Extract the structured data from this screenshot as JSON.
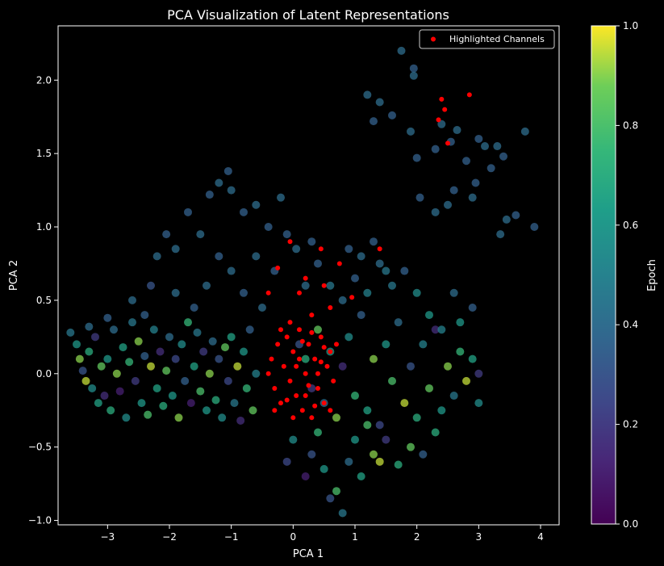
{
  "chart_data": {
    "type": "scatter",
    "title": "PCA Visualization of Latent Representations",
    "xlabel": "PCA 1",
    "ylabel": "PCA 2",
    "xlim": [
      -3.8,
      4.3
    ],
    "ylim": [
      -1.03,
      2.37
    ],
    "xticks": [
      -3,
      -2,
      -1,
      0,
      1,
      2,
      3,
      4
    ],
    "yticks": [
      -1.0,
      -0.5,
      0.0,
      0.5,
      1.0,
      1.5,
      2.0
    ],
    "xtick_labels": [
      "−3",
      "−2",
      "−1",
      "0",
      "1",
      "2",
      "3",
      "4"
    ],
    "ytick_labels": [
      "−1.0",
      "−0.5",
      "0.0",
      "0.5",
      "1.0",
      "1.5",
      "2.0"
    ],
    "grid": false,
    "background": "#000000",
    "colormap": "viridis",
    "colorbar": {
      "label": "Epoch",
      "range": [
        0.0,
        1.0
      ],
      "ticks": [
        0.0,
        0.2,
        0.4,
        0.6,
        0.8,
        1.0
      ],
      "tick_labels": [
        "0.0",
        "0.2",
        "0.4",
        "0.6",
        "0.8",
        "1.0"
      ]
    },
    "legend": {
      "placement": "upper right",
      "entries": [
        {
          "label": "Highlighted Channels",
          "color": "#ff0000"
        }
      ]
    },
    "series": [
      {
        "points": [
          [
            -3.6,
            0.28,
            0.45
          ],
          [
            -3.5,
            0.2,
            0.6
          ],
          [
            -3.45,
            0.1,
            0.9
          ],
          [
            -3.4,
            0.02,
            0.3
          ],
          [
            -3.35,
            -0.05,
            0.95
          ],
          [
            -3.3,
            0.15,
            0.7
          ],
          [
            -3.25,
            -0.1,
            0.55
          ],
          [
            -3.2,
            0.25,
            0.2
          ],
          [
            -3.15,
            -0.2,
            0.65
          ],
          [
            -3.1,
            0.05,
            0.85
          ],
          [
            -3.05,
            -0.15,
            0.15
          ],
          [
            -3.0,
            0.1,
            0.6
          ],
          [
            -2.95,
            -0.25,
            0.7
          ],
          [
            -2.9,
            0.3,
            0.4
          ],
          [
            -2.85,
            0.0,
            0.9
          ],
          [
            -2.8,
            -0.12,
            0.1
          ],
          [
            -2.75,
            0.18,
            0.65
          ],
          [
            -2.7,
            -0.3,
            0.55
          ],
          [
            -2.65,
            0.08,
            0.75
          ],
          [
            -2.6,
            0.35,
            0.45
          ],
          [
            -2.55,
            -0.05,
            0.2
          ],
          [
            -2.5,
            0.22,
            0.9
          ],
          [
            -2.45,
            -0.2,
            0.6
          ],
          [
            -2.4,
            0.12,
            0.35
          ],
          [
            -2.35,
            -0.28,
            0.8
          ],
          [
            -2.3,
            0.05,
            0.95
          ],
          [
            -2.25,
            0.3,
            0.5
          ],
          [
            -2.2,
            -0.1,
            0.65
          ],
          [
            -2.15,
            0.15,
            0.15
          ],
          [
            -2.1,
            -0.22,
            0.7
          ],
          [
            -2.05,
            0.02,
            0.85
          ],
          [
            -2.0,
            0.25,
            0.4
          ],
          [
            -1.95,
            -0.15,
            0.6
          ],
          [
            -1.9,
            0.1,
            0.25
          ],
          [
            -1.85,
            -0.3,
            0.9
          ],
          [
            -1.8,
            0.2,
            0.55
          ],
          [
            -1.75,
            -0.05,
            0.35
          ],
          [
            -1.7,
            0.35,
            0.75
          ],
          [
            -1.65,
            -0.2,
            0.1
          ],
          [
            -1.6,
            0.05,
            0.65
          ],
          [
            -1.55,
            0.28,
            0.45
          ],
          [
            -1.5,
            -0.12,
            0.8
          ],
          [
            -1.45,
            0.15,
            0.2
          ],
          [
            -1.4,
            -0.25,
            0.6
          ],
          [
            -1.35,
            0.0,
            0.9
          ],
          [
            -1.3,
            0.22,
            0.4
          ],
          [
            -1.25,
            -0.18,
            0.7
          ],
          [
            -1.2,
            0.1,
            0.3
          ],
          [
            -1.15,
            -0.3,
            0.55
          ],
          [
            -1.1,
            0.18,
            0.85
          ],
          [
            -1.05,
            -0.05,
            0.25
          ],
          [
            -1.0,
            0.25,
            0.65
          ],
          [
            -0.95,
            -0.2,
            0.45
          ],
          [
            -0.9,
            0.05,
            0.95
          ],
          [
            -0.85,
            -0.32,
            0.15
          ],
          [
            -0.8,
            0.15,
            0.6
          ],
          [
            -0.75,
            -0.1,
            0.75
          ],
          [
            -0.7,
            0.3,
            0.35
          ],
          [
            -0.65,
            -0.25,
            0.85
          ],
          [
            -0.6,
            0.0,
            0.5
          ],
          [
            -3.3,
            0.32,
            0.4
          ],
          [
            -3.0,
            0.38,
            0.35
          ],
          [
            -2.6,
            0.5,
            0.4
          ],
          [
            -2.3,
            0.6,
            0.3
          ],
          [
            -2.2,
            0.8,
            0.4
          ],
          [
            -2.05,
            0.95,
            0.35
          ],
          [
            -1.9,
            0.85,
            0.4
          ],
          [
            -1.7,
            1.1,
            0.35
          ],
          [
            -1.5,
            0.95,
            0.4
          ],
          [
            -1.35,
            1.22,
            0.35
          ],
          [
            -1.2,
            1.3,
            0.4
          ],
          [
            -1.05,
            1.38,
            0.35
          ],
          [
            -1.0,
            1.25,
            0.4
          ],
          [
            -0.8,
            1.1,
            0.35
          ],
          [
            -0.6,
            1.15,
            0.4
          ],
          [
            -0.4,
            1.0,
            0.35
          ],
          [
            -0.2,
            1.2,
            0.4
          ],
          [
            -0.1,
            0.95,
            0.35
          ],
          [
            0.05,
            0.85,
            0.4
          ],
          [
            0.3,
            0.9,
            0.35
          ],
          [
            -1.4,
            0.6,
            0.4
          ],
          [
            -1.2,
            0.8,
            0.35
          ],
          [
            -1.0,
            0.7,
            0.4
          ],
          [
            -0.8,
            0.55,
            0.35
          ],
          [
            -0.6,
            0.8,
            0.4
          ],
          [
            -0.3,
            0.7,
            0.35
          ],
          [
            -0.5,
            0.45,
            0.4
          ],
          [
            -1.6,
            0.45,
            0.35
          ],
          [
            -1.9,
            0.55,
            0.4
          ],
          [
            -2.4,
            0.4,
            0.35
          ],
          [
            1.2,
            1.9,
            0.4
          ],
          [
            1.3,
            1.72,
            0.35
          ],
          [
            1.4,
            1.85,
            0.4
          ],
          [
            1.6,
            1.76,
            0.35
          ],
          [
            1.75,
            2.2,
            0.4
          ],
          [
            1.95,
            2.08,
            0.35
          ],
          [
            1.95,
            2.03,
            0.4
          ],
          [
            2.0,
            1.47,
            0.35
          ],
          [
            1.9,
            1.65,
            0.4
          ],
          [
            2.3,
            1.53,
            0.35
          ],
          [
            2.4,
            1.7,
            0.4
          ],
          [
            2.55,
            1.58,
            0.35
          ],
          [
            2.65,
            1.66,
            0.4
          ],
          [
            2.6,
            1.25,
            0.35
          ],
          [
            2.5,
            1.15,
            0.4
          ],
          [
            2.8,
            1.45,
            0.35
          ],
          [
            2.9,
            1.2,
            0.4
          ],
          [
            3.0,
            1.6,
            0.35
          ],
          [
            3.1,
            1.55,
            0.4
          ],
          [
            3.2,
            1.4,
            0.35
          ],
          [
            3.3,
            1.55,
            0.4
          ],
          [
            3.4,
            1.48,
            0.35
          ],
          [
            3.45,
            1.05,
            0.4
          ],
          [
            3.6,
            1.08,
            0.35
          ],
          [
            3.75,
            1.65,
            0.4
          ],
          [
            3.9,
            1.0,
            0.35
          ],
          [
            3.35,
            0.95,
            0.4
          ],
          [
            2.95,
            1.3,
            0.35
          ],
          [
            2.3,
            1.1,
            0.4
          ],
          [
            2.05,
            1.2,
            0.35
          ],
          [
            0.1,
            0.2,
            0.3
          ],
          [
            0.2,
            0.1,
            0.7
          ],
          [
            0.3,
            -0.1,
            0.2
          ],
          [
            0.4,
            0.3,
            0.85
          ],
          [
            0.5,
            -0.2,
            0.4
          ],
          [
            0.6,
            0.15,
            0.6
          ],
          [
            0.7,
            -0.3,
            0.9
          ],
          [
            0.8,
            0.05,
            0.15
          ],
          [
            0.9,
            0.25,
            0.55
          ],
          [
            1.0,
            -0.15,
            0.75
          ],
          [
            1.1,
            0.4,
            0.35
          ],
          [
            1.2,
            -0.25,
            0.65
          ],
          [
            1.3,
            0.1,
            0.9
          ],
          [
            1.4,
            -0.35,
            0.25
          ],
          [
            1.5,
            0.2,
            0.6
          ],
          [
            1.6,
            -0.05,
            0.8
          ],
          [
            1.7,
            0.35,
            0.4
          ],
          [
            1.8,
            -0.2,
            0.95
          ],
          [
            1.9,
            0.05,
            0.3
          ],
          [
            2.0,
            -0.3,
            0.7
          ],
          [
            2.1,
            0.2,
            0.5
          ],
          [
            2.2,
            -0.1,
            0.85
          ],
          [
            2.3,
            0.3,
            0.15
          ],
          [
            2.4,
            -0.25,
            0.6
          ],
          [
            2.5,
            0.05,
            0.9
          ],
          [
            2.6,
            -0.15,
            0.45
          ],
          [
            2.7,
            0.15,
            0.75
          ],
          [
            2.8,
            -0.05,
            0.95
          ],
          [
            2.9,
            0.1,
            0.65
          ],
          [
            3.0,
            -0.2,
            0.55
          ],
          [
            0.3,
            -0.55,
            0.3
          ],
          [
            0.5,
            -0.65,
            0.6
          ],
          [
            0.7,
            -0.8,
            0.8
          ],
          [
            0.9,
            -0.6,
            0.4
          ],
          [
            1.1,
            -0.7,
            0.65
          ],
          [
            1.3,
            -0.55,
            0.9
          ],
          [
            1.5,
            -0.45,
            0.2
          ],
          [
            1.7,
            -0.62,
            0.7
          ],
          [
            1.9,
            -0.5,
            0.85
          ],
          [
            2.1,
            -0.55,
            0.35
          ],
          [
            0.6,
            -0.85,
            0.3
          ],
          [
            0.8,
            -0.95,
            0.45
          ],
          [
            0.2,
            -0.7,
            0.1
          ],
          [
            -0.1,
            -0.6,
            0.25
          ],
          [
            0.0,
            -0.45,
            0.55
          ],
          [
            0.4,
            -0.4,
            0.75
          ],
          [
            1.0,
            -0.45,
            0.6
          ],
          [
            1.2,
            -0.35,
            0.8
          ],
          [
            1.4,
            -0.6,
            0.95
          ],
          [
            2.3,
            -0.4,
            0.7
          ],
          [
            0.8,
            0.5,
            0.4
          ],
          [
            1.0,
            0.65,
            0.35
          ],
          [
            1.2,
            0.55,
            0.5
          ],
          [
            1.4,
            0.75,
            0.4
          ],
          [
            1.6,
            0.6,
            0.45
          ],
          [
            1.8,
            0.7,
            0.35
          ],
          [
            2.0,
            0.55,
            0.55
          ],
          [
            2.2,
            0.4,
            0.6
          ],
          [
            2.4,
            0.3,
            0.5
          ],
          [
            2.6,
            0.55,
            0.4
          ],
          [
            0.2,
            0.6,
            0.4
          ],
          [
            0.4,
            0.75,
            0.35
          ],
          [
            0.6,
            0.6,
            0.45
          ],
          [
            0.9,
            0.85,
            0.35
          ],
          [
            1.1,
            0.8,
            0.4
          ],
          [
            1.3,
            0.9,
            0.35
          ],
          [
            1.5,
            0.7,
            0.45
          ],
          [
            2.9,
            0.45,
            0.35
          ],
          [
            3.0,
            0.0,
            0.2
          ],
          [
            2.7,
            0.35,
            0.6
          ]
        ]
      },
      {
        "name": "Highlighted Channels",
        "color": "#ff0000",
        "points": [
          [
            -0.4,
            0.0
          ],
          [
            -0.35,
            0.1
          ],
          [
            -0.3,
            -0.1
          ],
          [
            -0.25,
            0.2
          ],
          [
            -0.2,
            -0.2
          ],
          [
            -0.15,
            0.05
          ],
          [
            -0.1,
            0.25
          ],
          [
            -0.05,
            -0.05
          ],
          [
            0.0,
            0.15
          ],
          [
            0.05,
            -0.15
          ],
          [
            0.1,
            0.3
          ],
          [
            0.15,
            -0.25
          ],
          [
            0.2,
            0.0
          ],
          [
            0.25,
            0.2
          ],
          [
            0.3,
            -0.3
          ],
          [
            0.35,
            0.1
          ],
          [
            0.4,
            -0.1
          ],
          [
            0.45,
            0.25
          ],
          [
            0.5,
            -0.2
          ],
          [
            0.55,
            0.05
          ],
          [
            0.6,
            0.15
          ],
          [
            0.65,
            -0.05
          ],
          [
            0.7,
            0.2
          ],
          [
            -0.3,
            -0.25
          ],
          [
            -0.2,
            0.3
          ],
          [
            0.0,
            -0.3
          ],
          [
            0.1,
            0.1
          ],
          [
            0.2,
            -0.15
          ],
          [
            0.3,
            0.28
          ],
          [
            0.4,
            0.0
          ],
          [
            0.5,
            0.18
          ],
          [
            0.6,
            -0.25
          ],
          [
            -0.1,
            -0.18
          ],
          [
            0.15,
            0.22
          ],
          [
            0.25,
            -0.08
          ],
          [
            0.35,
            -0.22
          ],
          [
            0.45,
            0.08
          ],
          [
            -0.05,
            0.35
          ],
          [
            0.05,
            0.05
          ],
          [
            0.3,
            0.4
          ],
          [
            -0.4,
            0.55
          ],
          [
            -0.25,
            0.72
          ],
          [
            -0.05,
            0.9
          ],
          [
            0.1,
            0.55
          ],
          [
            0.2,
            0.65
          ],
          [
            0.45,
            0.85
          ],
          [
            0.5,
            0.6
          ],
          [
            0.6,
            0.45
          ],
          [
            0.75,
            0.75
          ],
          [
            0.95,
            0.52
          ],
          [
            1.4,
            0.85
          ],
          [
            2.35,
            1.73
          ],
          [
            2.4,
            1.87
          ],
          [
            2.45,
            1.8
          ],
          [
            2.5,
            1.57
          ],
          [
            2.85,
            1.9
          ]
        ]
      }
    ]
  }
}
